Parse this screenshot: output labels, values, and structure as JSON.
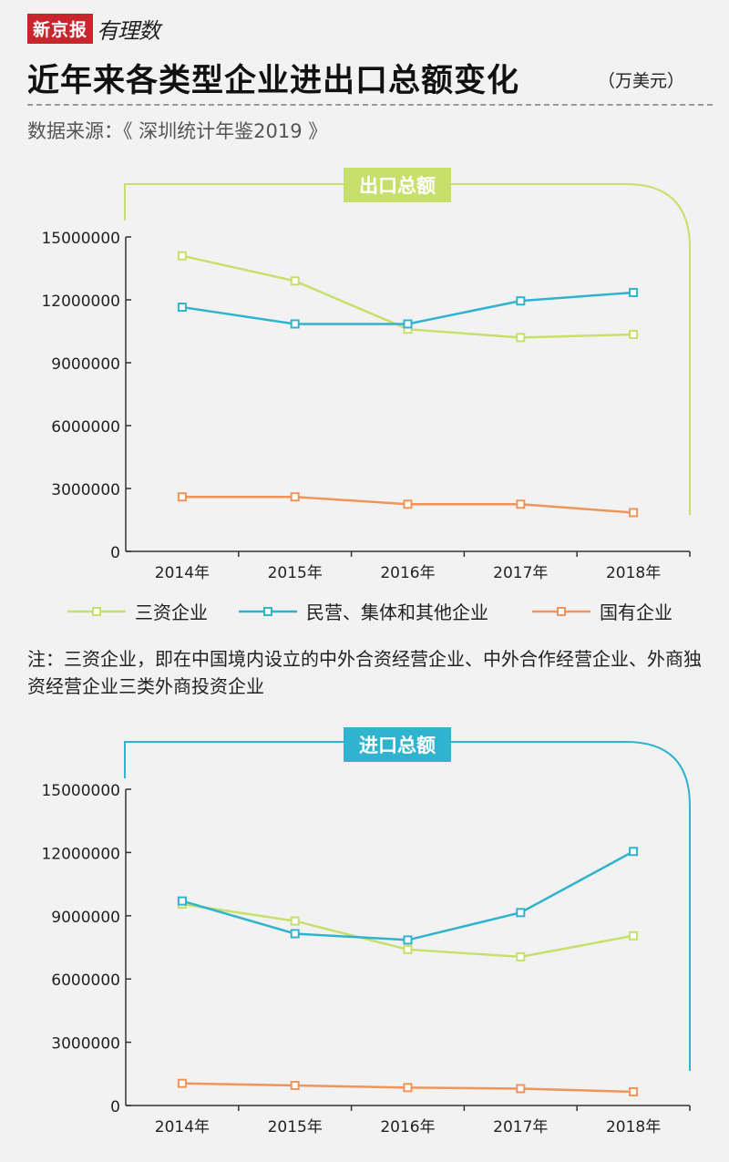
{
  "brand": {
    "name": "新京报",
    "script": "有理数"
  },
  "title": "近年来各类型企业进出口总额变化",
  "unit": "（万美元）",
  "source": "数据来源：《 深圳统计年鉴2019 》",
  "note": "注：三资企业，即在中国境内设立的中外合资经营企业、中外合作经营企业、外商独资经营企业三类外商投资企业",
  "legend": [
    {
      "name": "三资企业",
      "color": "#c7df6b"
    },
    {
      "name": "民营、集体和其他企业",
      "color": "#2fb3cf"
    },
    {
      "name": "国有企业",
      "color": "#f0955a"
    }
  ],
  "chart_data": [
    {
      "type": "line",
      "title": "出口总额",
      "accent": "#c7df6b",
      "categories": [
        "2014年",
        "2015年",
        "2016年",
        "2017年",
        "2018年"
      ],
      "ylim": [
        0,
        15000000
      ],
      "yticks": [
        "0",
        "3000000",
        "6000000",
        "9000000",
        "12000000",
        "15000000"
      ],
      "grid": false,
      "legend_position": "bottom",
      "series": [
        {
          "name": "三资企业",
          "color": "#c7df6b",
          "values": [
            14100000,
            12900000,
            10600000,
            10200000,
            10350000
          ]
        },
        {
          "name": "民营、集体和其他企业",
          "color": "#2fb3cf",
          "values": [
            11650000,
            10850000,
            10850000,
            11950000,
            12350000
          ]
        },
        {
          "name": "国有企业",
          "color": "#f0955a",
          "values": [
            2600000,
            2600000,
            2250000,
            2250000,
            1850000
          ]
        }
      ]
    },
    {
      "type": "line",
      "title": "进口总额",
      "accent": "#2fb3cf",
      "categories": [
        "2014年",
        "2015年",
        "2016年",
        "2017年",
        "2018年"
      ],
      "ylim": [
        0,
        15000000
      ],
      "yticks": [
        "0",
        "3000000",
        "6000000",
        "9000000",
        "12000000",
        "15000000"
      ],
      "grid": false,
      "legend_position": "bottom",
      "series": [
        {
          "name": "三资企业",
          "color": "#c7df6b",
          "values": [
            9550000,
            8750000,
            7400000,
            7050000,
            8050000
          ]
        },
        {
          "name": "民营、集体和其他企业",
          "color": "#2fb3cf",
          "values": [
            9700000,
            8150000,
            7850000,
            9150000,
            12050000
          ]
        },
        {
          "name": "国有企业",
          "color": "#f0955a",
          "values": [
            1050000,
            950000,
            850000,
            800000,
            650000
          ]
        }
      ]
    }
  ]
}
